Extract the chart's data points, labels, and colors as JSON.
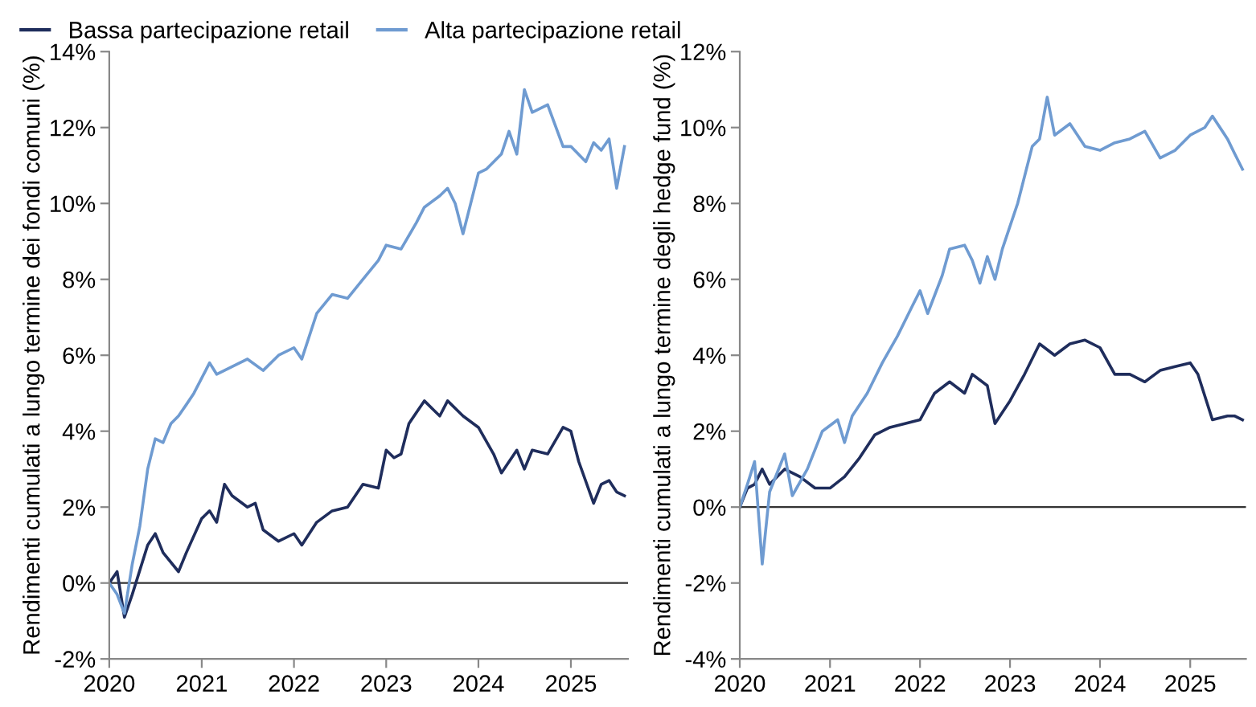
{
  "chart_data": [
    {
      "type": "line",
      "ylabel": "Rendimenti cumulati a lungo termine dei fondi comuni (%)",
      "legend": "top left",
      "grid": false,
      "marker": "none",
      "line_style": "solid",
      "xlim": [
        "2020-01-01",
        "2025-08-15"
      ],
      "xticks": [
        "2020",
        "2021",
        "2022",
        "2023",
        "2024",
        "2025"
      ],
      "ylim": [
        -2,
        14
      ],
      "yticks": [
        {
          "value": -2,
          "label": "-2%"
        },
        {
          "value": 0,
          "label": "0%"
        },
        {
          "value": 2,
          "label": "2%"
        },
        {
          "value": 4,
          "label": "4%"
        },
        {
          "value": 6,
          "label": "6%"
        },
        {
          "value": 8,
          "label": "8%"
        },
        {
          "value": 10,
          "label": "10%"
        },
        {
          "value": 12,
          "label": "12%"
        },
        {
          "value": 14,
          "label": "14%"
        }
      ],
      "ref_lines": [
        {
          "axis": "y",
          "value": 0,
          "color": "#333333"
        }
      ],
      "series": [
        {
          "name": "Bassa partecipazione retail",
          "color": "#1f2d5c",
          "x": [
            "2020-01",
            "2020-02",
            "2020-03",
            "2020-04",
            "2020-06",
            "2020-07",
            "2020-08",
            "2020-10",
            "2020-11",
            "2021-01",
            "2021-02",
            "2021-03",
            "2021-04",
            "2021-05",
            "2021-07",
            "2021-08",
            "2021-09",
            "2021-11",
            "2022-01",
            "2022-02",
            "2022-04",
            "2022-06",
            "2022-08",
            "2022-10",
            "2022-12",
            "2023-01",
            "2023-02",
            "2023-03",
            "2023-04",
            "2023-06",
            "2023-07",
            "2023-08",
            "2023-09",
            "2023-11",
            "2024-01",
            "2024-03",
            "2024-04",
            "2024-06",
            "2024-07",
            "2024-08",
            "2024-10",
            "2024-12",
            "2025-01",
            "2025-02",
            "2025-04",
            "2025-05",
            "2025-06",
            "2025-07",
            "2025-08"
          ],
          "values": [
            0,
            0.3,
            -0.9,
            -0.3,
            1.0,
            1.3,
            0.8,
            0.3,
            0.8,
            1.7,
            1.9,
            1.6,
            2.6,
            2.3,
            2.0,
            2.1,
            1.4,
            1.1,
            1.3,
            1.0,
            1.6,
            1.9,
            2.0,
            2.6,
            2.5,
            3.5,
            3.3,
            3.4,
            4.2,
            4.8,
            4.6,
            4.4,
            4.8,
            4.4,
            4.1,
            3.4,
            2.9,
            3.5,
            3.0,
            3.5,
            3.4,
            4.1,
            4.0,
            3.2,
            2.1,
            2.6,
            2.7,
            2.4,
            2.3
          ]
        },
        {
          "name": "Alta partecipazione retail",
          "color": "#6f9bd1",
          "x": [
            "2020-01",
            "2020-02",
            "2020-03",
            "2020-04",
            "2020-05",
            "2020-06",
            "2020-07",
            "2020-08",
            "2020-09",
            "2020-10",
            "2020-11",
            "2020-12",
            "2021-02",
            "2021-03",
            "2021-05",
            "2021-07",
            "2021-09",
            "2021-11",
            "2022-01",
            "2022-02",
            "2022-04",
            "2022-06",
            "2022-08",
            "2022-10",
            "2022-12",
            "2023-01",
            "2023-03",
            "2023-05",
            "2023-06",
            "2023-08",
            "2023-09",
            "2023-10",
            "2023-11",
            "2024-01",
            "2024-02",
            "2024-04",
            "2024-05",
            "2024-06",
            "2024-07",
            "2024-08",
            "2024-10",
            "2024-12",
            "2025-01",
            "2025-03",
            "2025-04",
            "2025-05",
            "2025-06",
            "2025-07",
            "2025-08"
          ],
          "values": [
            0,
            -0.3,
            -0.8,
            0.5,
            1.5,
            3.0,
            3.8,
            3.7,
            4.2,
            4.4,
            4.7,
            5.0,
            5.8,
            5.5,
            5.7,
            5.9,
            5.6,
            6.0,
            6.2,
            5.9,
            7.1,
            7.6,
            7.5,
            8.0,
            8.5,
            8.9,
            8.8,
            9.5,
            9.9,
            10.2,
            10.4,
            10.0,
            9.2,
            10.8,
            10.9,
            11.3,
            11.9,
            11.3,
            13.0,
            12.4,
            12.6,
            11.5,
            11.5,
            11.1,
            11.6,
            11.4,
            11.7,
            10.4,
            11.5
          ]
        }
      ]
    },
    {
      "type": "line",
      "ylabel": "Rendimenti cumulati a lungo termine degli hedge fund (%)",
      "grid": false,
      "marker": "none",
      "line_style": "solid",
      "xlim": [
        "2020-01-01",
        "2025-08-15"
      ],
      "xticks": [
        "2020",
        "2021",
        "2022",
        "2023",
        "2024",
        "2025"
      ],
      "ylim": [
        -4,
        12
      ],
      "yticks": [
        {
          "value": -4,
          "label": "-4%"
        },
        {
          "value": -2,
          "label": "-2%"
        },
        {
          "value": 0,
          "label": "0%"
        },
        {
          "value": 2,
          "label": "2%"
        },
        {
          "value": 4,
          "label": "4%"
        },
        {
          "value": 6,
          "label": "6%"
        },
        {
          "value": 8,
          "label": "8%"
        },
        {
          "value": 10,
          "label": "10%"
        },
        {
          "value": 12,
          "label": "12%"
        }
      ],
      "ref_lines": [
        {
          "axis": "y",
          "value": 0,
          "color": "#333333"
        }
      ],
      "series": [
        {
          "color": "#1f2d5c",
          "x": [
            "2020-01",
            "2020-02",
            "2020-03",
            "2020-04",
            "2020-05",
            "2020-07",
            "2020-09",
            "2020-11",
            "2021-01",
            "2021-03",
            "2021-05",
            "2021-07",
            "2021-09",
            "2021-11",
            "2022-01",
            "2022-03",
            "2022-05",
            "2022-07",
            "2022-08",
            "2022-10",
            "2022-11",
            "2023-01",
            "2023-03",
            "2023-05",
            "2023-07",
            "2023-09",
            "2023-11",
            "2024-01",
            "2024-03",
            "2024-05",
            "2024-07",
            "2024-09",
            "2024-11",
            "2025-01",
            "2025-02",
            "2025-04",
            "2025-06",
            "2025-07",
            "2025-08"
          ],
          "values": [
            0,
            0.5,
            0.6,
            1.0,
            0.6,
            1.0,
            0.8,
            0.5,
            0.5,
            0.8,
            1.3,
            1.9,
            2.1,
            2.2,
            2.3,
            3.0,
            3.3,
            3.0,
            3.5,
            3.2,
            2.2,
            2.8,
            3.5,
            4.3,
            4.0,
            4.3,
            4.4,
            4.2,
            3.5,
            3.5,
            3.3,
            3.6,
            3.7,
            3.8,
            3.5,
            2.3,
            2.4,
            2.4,
            2.3
          ]
        },
        {
          "color": "#6f9bd1",
          "x": [
            "2020-01",
            "2020-02",
            "2020-03",
            "2020-04",
            "2020-05",
            "2020-07",
            "2020-08",
            "2020-10",
            "2020-12",
            "2021-02",
            "2021-03",
            "2021-04",
            "2021-06",
            "2021-08",
            "2021-10",
            "2021-12",
            "2022-01",
            "2022-02",
            "2022-04",
            "2022-05",
            "2022-07",
            "2022-08",
            "2022-09",
            "2022-10",
            "2022-11",
            "2022-12",
            "2023-02",
            "2023-04",
            "2023-05",
            "2023-06",
            "2023-07",
            "2023-09",
            "2023-11",
            "2024-01",
            "2024-03",
            "2024-05",
            "2024-07",
            "2024-09",
            "2024-11",
            "2025-01",
            "2025-03",
            "2025-04",
            "2025-06",
            "2025-07",
            "2025-08"
          ],
          "values": [
            0,
            0.6,
            1.2,
            -1.5,
            0.4,
            1.4,
            0.3,
            1.0,
            2.0,
            2.3,
            1.7,
            2.4,
            3.0,
            3.8,
            4.5,
            5.3,
            5.7,
            5.1,
            6.1,
            6.8,
            6.9,
            6.5,
            5.9,
            6.6,
            6.0,
            6.8,
            8.0,
            9.5,
            9.7,
            10.8,
            9.8,
            10.1,
            9.5,
            9.4,
            9.6,
            9.7,
            9.9,
            9.2,
            9.4,
            9.8,
            10.0,
            10.3,
            9.7,
            9.3,
            8.9
          ]
        }
      ]
    }
  ]
}
